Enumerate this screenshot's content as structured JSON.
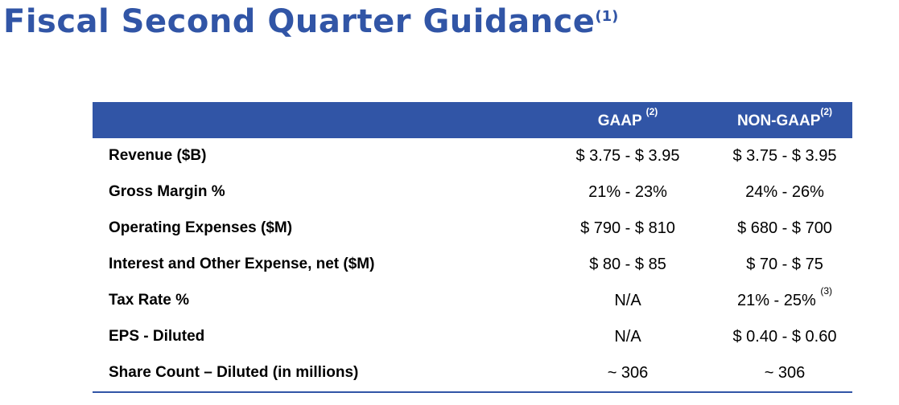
{
  "title": {
    "text": "Fiscal Second Quarter Guidance",
    "footnote": "(1)"
  },
  "table": {
    "headers": {
      "gaap": "GAAP",
      "gaap_note": "(2)",
      "nongaap": "NON-GAAP",
      "nongaap_note": "(2)"
    },
    "rows": [
      {
        "label": "Revenue ($B)",
        "gaap": "$ 3.75 - $ 3.95",
        "nongaap": "$ 3.75 - $ 3.95",
        "nongaap_note": ""
      },
      {
        "label": "Gross Margin %",
        "gaap": "21% - 23%",
        "nongaap": "24% - 26%",
        "nongaap_note": ""
      },
      {
        "label": "Operating Expenses ($M)",
        "gaap": "$ 790 - $ 810",
        "nongaap": "$ 680 - $ 700",
        "nongaap_note": ""
      },
      {
        "label": "Interest and Other Expense, net ($M)",
        "gaap": "$ 80 - $ 85",
        "nongaap": "$ 70 - $ 75",
        "nongaap_note": ""
      },
      {
        "label": "Tax Rate %",
        "gaap": "N/A",
        "nongaap": "21% - 25%",
        "nongaap_note": "(3)"
      },
      {
        "label": "EPS - Diluted",
        "gaap": "N/A",
        "nongaap": "$ 0.40 - $ 0.60",
        "nongaap_note": ""
      },
      {
        "label": "Share Count – Diluted (in millions)",
        "gaap": "~ 306",
        "nongaap": "~ 306",
        "nongaap_note": ""
      }
    ]
  },
  "colors": {
    "accent": "#3155A6",
    "header_text": "#FFFFFF",
    "body_text": "#000000"
  }
}
